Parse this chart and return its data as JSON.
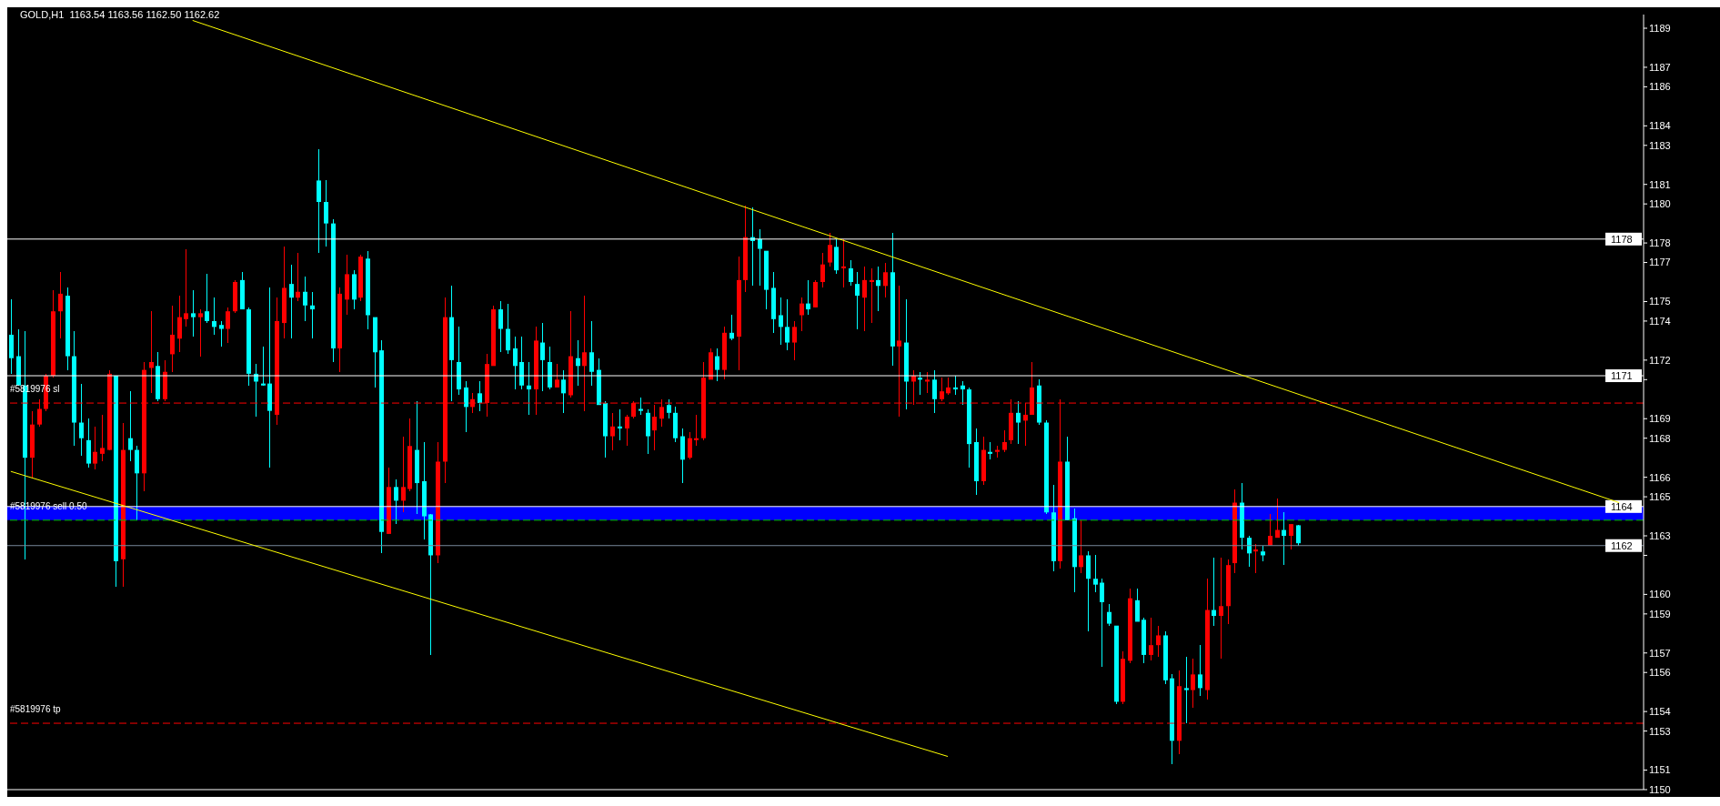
{
  "chart_data": {
    "type": "candlestick",
    "title": "GOLD,H1  1163.54 1163.56 1162.50 1162.62",
    "categories": [
      null,
      null,
      null,
      null,
      null,
      null,
      null,
      null,
      null,
      null,
      null,
      null,
      null,
      null,
      null,
      null,
      null,
      null,
      null,
      null,
      null,
      null,
      null,
      null,
      null,
      null,
      null,
      null,
      null,
      null,
      null,
      null,
      null,
      null,
      null,
      null,
      null,
      null,
      null,
      null,
      null,
      null,
      null,
      null,
      null,
      null,
      null,
      null,
      null,
      null,
      null,
      null,
      null,
      null,
      null,
      null,
      null,
      null,
      null,
      null,
      null,
      null,
      null,
      null,
      null,
      null,
      null,
      null,
      null,
      null,
      null,
      null,
      null,
      null,
      null,
      null,
      null,
      null,
      null,
      null,
      null,
      null,
      null,
      null,
      null,
      null,
      null,
      null,
      null,
      null,
      null,
      null,
      null,
      null,
      null,
      null,
      null,
      null,
      null,
      null,
      null,
      null,
      null,
      null,
      null,
      null,
      null,
      null,
      null,
      null,
      null,
      null,
      null,
      null,
      null,
      null,
      null,
      null,
      null,
      null,
      null,
      null,
      null,
      null,
      null,
      null,
      null,
      null,
      null,
      null,
      null,
      null,
      null,
      null,
      null,
      null,
      null,
      null,
      null,
      null,
      null,
      null,
      null,
      null,
      null,
      null,
      null,
      null,
      null,
      null,
      null,
      null,
      null,
      null,
      null,
      null,
      null,
      null,
      null,
      null,
      null,
      null,
      null,
      null,
      null,
      null,
      null,
      null,
      null,
      null,
      null,
      null,
      null,
      null,
      null,
      null,
      null,
      null,
      null,
      null,
      null,
      null,
      null,
      null,
      null,
      null,
      null,
      null,
      null,
      null,
      null,
      null,
      null,
      null,
      null,
      null,
      null,
      null,
      null,
      null,
      null,
      null,
      null,
      null,
      null,
      null,
      null,
      null,
      null,
      null,
      null,
      null,
      null,
      null,
      null,
      null,
      null,
      null,
      null,
      null,
      null,
      null,
      null,
      null,
      null,
      null,
      null,
      null,
      null,
      null,
      null,
      null,
      null,
      null
    ],
    "ohlc": [
      [
        1173.3,
        1175.1,
        1171.3,
        1172.1
      ],
      [
        1172.2,
        1173.6,
        1170.7,
        1170.7
      ],
      [
        1170.7,
        1173.5,
        1161.8,
        1167.0
      ],
      [
        1167.0,
        1169.4,
        1166.0,
        1168.7
      ],
      [
        1168.7,
        1170.0,
        1168.6,
        1169.5
      ],
      [
        1169.5,
        1171.3,
        1169.4,
        1171.2
      ],
      [
        1171.2,
        1175.6,
        1171.1,
        1174.5
      ],
      [
        1174.5,
        1176.5,
        1173.1,
        1175.4
      ],
      [
        1175.3,
        1175.7,
        1171.5,
        1172.2
      ],
      [
        1172.2,
        1173.5,
        1167.6,
        1168.8
      ],
      [
        1168.8,
        1170.8,
        1167.1,
        1168.0
      ],
      [
        1167.9,
        1169.0,
        1166.5,
        1166.7
      ],
      [
        1166.7,
        1168.6,
        1166.4,
        1167.3
      ],
      [
        1167.2,
        1169.2,
        1166.8,
        1167.5
      ],
      [
        1167.4,
        1171.5,
        1167.4,
        1171.3
      ],
      [
        1171.2,
        1171.2,
        1160.4,
        1161.7
      ],
      [
        1161.8,
        1168.8,
        1160.4,
        1167.4
      ],
      [
        1168.0,
        1170.4,
        1166.8,
        1167.4
      ],
      [
        1167.4,
        1167.6,
        1163.8,
        1166.2
      ],
      [
        1166.2,
        1171.9,
        1165.3,
        1171.5
      ],
      [
        1171.6,
        1174.5,
        1170.3,
        1171.9
      ],
      [
        1171.7,
        1172.4,
        1169.9,
        1170.0
      ],
      [
        1170.0,
        1172.0,
        1169.9,
        1171.4
      ],
      [
        1172.3,
        1174.8,
        1171.4,
        1173.3
      ],
      [
        1173.1,
        1175.3,
        1172.4,
        1174.2
      ],
      [
        1174.1,
        1177.7,
        1173.7,
        1174.4
      ],
      [
        1174.4,
        1175.6,
        1173.2,
        1174.2
      ],
      [
        1174.2,
        1174.6,
        1172.2,
        1174.4
      ],
      [
        1174.5,
        1176.4,
        1173.9,
        1174.0
      ],
      [
        1174.0,
        1175.2,
        1173.3,
        1173.7
      ],
      [
        1173.8,
        1174.0,
        1172.7,
        1173.6
      ],
      [
        1173.6,
        1174.7,
        1172.9,
        1174.5
      ],
      [
        1174.5,
        1176.1,
        1174.4,
        1176.0
      ],
      [
        1176.1,
        1176.5,
        1174.6,
        1174.6
      ],
      [
        1174.6,
        1174.7,
        1170.7,
        1171.3
      ],
      [
        1171.3,
        1171.8,
        1169.1,
        1170.9
      ],
      [
        1170.8,
        1172.7,
        1170.7,
        1170.7
      ],
      [
        1170.8,
        1175.7,
        1166.5,
        1169.4
      ],
      [
        1169.2,
        1175.2,
        1168.7,
        1174.0
      ],
      [
        1173.9,
        1177.8,
        1173.1,
        1175.7
      ],
      [
        1175.9,
        1176.9,
        1173.1,
        1175.2
      ],
      [
        1175.2,
        1177.5,
        1175.0,
        1175.5
      ],
      [
        1175.5,
        1176.3,
        1174.0,
        1174.8
      ],
      [
        1174.8,
        1175.5,
        1173.1,
        1174.6
      ],
      [
        1181.2,
        1182.8,
        1177.5,
        1180.1
      ],
      [
        1180.1,
        1181.2,
        1177.8,
        1179.0
      ],
      [
        1179.0,
        1179.2,
        1171.9,
        1172.6
      ],
      [
        1172.6,
        1175.7,
        1171.4,
        1175.4
      ],
      [
        1175.1,
        1177.4,
        1174.3,
        1176.4
      ],
      [
        1176.4,
        1176.6,
        1174.6,
        1175.1
      ],
      [
        1175.2,
        1177.4,
        1175.0,
        1177.3
      ],
      [
        1177.2,
        1177.6,
        1173.6,
        1174.3
      ],
      [
        1174.2,
        1174.2,
        1170.6,
        1172.4
      ],
      [
        1172.5,
        1173.0,
        1162.1,
        1163.2
      ],
      [
        1163.1,
        1166.5,
        1163.1,
        1165.5
      ],
      [
        1165.5,
        1165.9,
        1163.6,
        1164.8
      ],
      [
        1164.8,
        1168.1,
        1164.2,
        1165.5
      ],
      [
        1165.4,
        1169.0,
        1165.3,
        1167.6
      ],
      [
        1167.4,
        1169.9,
        1164.1,
        1165.7
      ],
      [
        1165.8,
        1167.8,
        1162.8,
        1164.0
      ],
      [
        1164.1,
        1164.1,
        1156.9,
        1162.0
      ],
      [
        1162.0,
        1167.8,
        1161.6,
        1166.8
      ],
      [
        1166.8,
        1175.2,
        1165.7,
        1174.2
      ],
      [
        1174.2,
        1175.8,
        1169.9,
        1172.0
      ],
      [
        1171.9,
        1173.7,
        1170.2,
        1170.5
      ],
      [
        1170.6,
        1170.9,
        1168.3,
        1169.6
      ],
      [
        1169.6,
        1170.3,
        1169.3,
        1170.0
      ],
      [
        1170.3,
        1170.9,
        1169.4,
        1169.8
      ],
      [
        1169.8,
        1172.3,
        1169.1,
        1171.8
      ],
      [
        1171.7,
        1174.8,
        1171.7,
        1174.6
      ],
      [
        1174.6,
        1175.0,
        1172.4,
        1173.6
      ],
      [
        1173.6,
        1174.9,
        1172.3,
        1172.5
      ],
      [
        1172.6,
        1173.2,
        1170.5,
        1171.7
      ],
      [
        1171.9,
        1173.2,
        1170.5,
        1170.7
      ],
      [
        1170.7,
        1171.9,
        1169.2,
        1170.5
      ],
      [
        1170.5,
        1173.7,
        1169.2,
        1173.0
      ],
      [
        1172.9,
        1173.9,
        1170.4,
        1172.0
      ],
      [
        1171.9,
        1172.7,
        1170.5,
        1170.6
      ],
      [
        1170.6,
        1171.8,
        1170.6,
        1171.0
      ],
      [
        1171.0,
        1171.5,
        1169.3,
        1170.3
      ],
      [
        1170.2,
        1174.5,
        1170.1,
        1172.2
      ],
      [
        1172.1,
        1173.0,
        1170.7,
        1171.7
      ],
      [
        1171.7,
        1175.3,
        1169.4,
        1172.4
      ],
      [
        1172.4,
        1174.0,
        1170.7,
        1171.4
      ],
      [
        1171.5,
        1172.1,
        1169.7,
        1169.7
      ],
      [
        1169.8,
        1169.9,
        1167.0,
        1168.1
      ],
      [
        1168.1,
        1169.3,
        1167.4,
        1168.6
      ],
      [
        1168.6,
        1169.5,
        1167.9,
        1168.5
      ],
      [
        1168.5,
        1169.2,
        1167.6,
        1169.1
      ],
      [
        1169.1,
        1169.9,
        1169.0,
        1169.8
      ],
      [
        1169.5,
        1170.1,
        1169.2,
        1169.4
      ],
      [
        1169.3,
        1169.5,
        1167.2,
        1168.1
      ],
      [
        1168.4,
        1169.7,
        1167.4,
        1169.1
      ],
      [
        1169.0,
        1170.0,
        1168.6,
        1169.6
      ],
      [
        1169.7,
        1170.0,
        1169.0,
        1169.3
      ],
      [
        1169.3,
        1169.6,
        1167.8,
        1168.0
      ],
      [
        1168.1,
        1168.5,
        1165.7,
        1166.9
      ],
      [
        1167.0,
        1168.3,
        1166.9,
        1168.0
      ],
      [
        1167.9,
        1169.2,
        1167.6,
        1168.0
      ],
      [
        1168.0,
        1171.9,
        1167.9,
        1171.1
      ],
      [
        1171.0,
        1172.6,
        1171.0,
        1172.4
      ],
      [
        1172.2,
        1172.6,
        1170.9,
        1171.5
      ],
      [
        1171.5,
        1173.7,
        1171.0,
        1173.4
      ],
      [
        1173.4,
        1174.3,
        1173.0,
        1173.1
      ],
      [
        1173.2,
        1177.3,
        1171.5,
        1176.1
      ],
      [
        1176.1,
        1179.9,
        1175.5,
        1178.3
      ],
      [
        1178.3,
        1179.8,
        1175.8,
        1178.1
      ],
      [
        1178.2,
        1178.7,
        1175.8,
        1177.7
      ],
      [
        1177.6,
        1177.6,
        1174.6,
        1175.6
      ],
      [
        1175.7,
        1176.5,
        1173.4,
        1174.1
      ],
      [
        1174.3,
        1175.2,
        1172.8,
        1173.7
      ],
      [
        1173.7,
        1175.1,
        1172.5,
        1172.9
      ],
      [
        1172.9,
        1174.0,
        1172.0,
        1173.7
      ],
      [
        1174.3,
        1175.2,
        1173.5,
        1174.9
      ],
      [
        1174.9,
        1176.1,
        1174.3,
        1174.6
      ],
      [
        1174.7,
        1176.1,
        1174.7,
        1176.0
      ],
      [
        1176.0,
        1177.5,
        1175.7,
        1176.9
      ],
      [
        1177.0,
        1178.5,
        1176.8,
        1177.9
      ],
      [
        1177.8,
        1178.2,
        1176.4,
        1176.6
      ],
      [
        1176.7,
        1178.2,
        1175.7,
        1176.8
      ],
      [
        1176.7,
        1177.1,
        1175.8,
        1176.0
      ],
      [
        1175.9,
        1176.5,
        1173.6,
        1175.3
      ],
      [
        1175.2,
        1176.8,
        1173.5,
        1176.1
      ],
      [
        1176.0,
        1176.7,
        1173.9,
        1176.1
      ],
      [
        1176.1,
        1176.8,
        1174.5,
        1175.8
      ],
      [
        1175.8,
        1177.0,
        1175.2,
        1176.5
      ],
      [
        1176.5,
        1178.5,
        1171.7,
        1172.7
      ],
      [
        1172.7,
        1175.8,
        1169.1,
        1173.0
      ],
      [
        1172.9,
        1175.1,
        1169.5,
        1170.9
      ],
      [
        1170.9,
        1171.5,
        1169.7,
        1171.2
      ],
      [
        1171.1,
        1171.4,
        1170.2,
        1171.0
      ],
      [
        1170.9,
        1171.4,
        1170.3,
        1171.0
      ],
      [
        1171.0,
        1171.5,
        1169.3,
        1170.0
      ],
      [
        1170.0,
        1171.1,
        1169.9,
        1170.4
      ],
      [
        1170.3,
        1171.1,
        1170.2,
        1170.6
      ],
      [
        1170.6,
        1171.2,
        1170.2,
        1170.5
      ],
      [
        1170.7,
        1170.9,
        1169.7,
        1170.5
      ],
      [
        1170.5,
        1170.6,
        1166.5,
        1167.7
      ],
      [
        1167.8,
        1168.5,
        1165.1,
        1165.8
      ],
      [
        1165.8,
        1168.1,
        1165.6,
        1167.4
      ],
      [
        1167.3,
        1167.8,
        1166.9,
        1167.2
      ],
      [
        1167.3,
        1167.6,
        1167.0,
        1167.4
      ],
      [
        1167.4,
        1168.4,
        1167.3,
        1167.8
      ],
      [
        1167.9,
        1170.0,
        1167.7,
        1169.3
      ],
      [
        1169.3,
        1169.9,
        1167.7,
        1168.8
      ],
      [
        1168.9,
        1169.8,
        1167.6,
        1169.2
      ],
      [
        1169.2,
        1171.9,
        1169.2,
        1170.6
      ],
      [
        1170.7,
        1171.0,
        1168.7,
        1168.8
      ],
      [
        1168.8,
        1168.9,
        1164.1,
        1164.2
      ],
      [
        1164.2,
        1165.6,
        1161.2,
        1161.7
      ],
      [
        1161.7,
        1170.0,
        1161.3,
        1166.8
      ],
      [
        1166.8,
        1168.1,
        1163.8,
        1163.8
      ],
      [
        1163.9,
        1164.4,
        1160.1,
        1161.4
      ],
      [
        1161.4,
        1163.8,
        1161.1,
        1162.0
      ],
      [
        1162.0,
        1162.2,
        1158.1,
        1160.8
      ],
      [
        1160.8,
        1162.0,
        1160.1,
        1160.5
      ],
      [
        1160.6,
        1160.8,
        1156.3,
        1159.6
      ],
      [
        1159.1,
        1159.5,
        1158.4,
        1158.5
      ],
      [
        1158.4,
        1158.4,
        1154.4,
        1154.5
      ],
      [
        1154.5,
        1157.1,
        1154.4,
        1156.7
      ],
      [
        1156.6,
        1160.3,
        1156.5,
        1159.8
      ],
      [
        1159.7,
        1160.3,
        1158.6,
        1158.6
      ],
      [
        1158.7,
        1158.8,
        1156.5,
        1156.9
      ],
      [
        1156.9,
        1158.8,
        1156.6,
        1157.4
      ],
      [
        1157.4,
        1158.4,
        1156.8,
        1157.9
      ],
      [
        1157.9,
        1158.1,
        1155.4,
        1155.6
      ],
      [
        1155.7,
        1155.9,
        1151.3,
        1152.5
      ],
      [
        1152.5,
        1156.1,
        1151.8,
        1155.3
      ],
      [
        1155.2,
        1156.8,
        1153.4,
        1155.1
      ],
      [
        1155.1,
        1156.7,
        1154.2,
        1155.9
      ],
      [
        1155.9,
        1157.4,
        1154.8,
        1155.2
      ],
      [
        1155.1,
        1160.8,
        1154.6,
        1159.2
      ],
      [
        1159.2,
        1161.9,
        1158.4,
        1158.9
      ],
      [
        1158.9,
        1161.9,
        1156.7,
        1159.4
      ],
      [
        1159.4,
        1161.8,
        1158.5,
        1161.5
      ],
      [
        1161.6,
        1165.4,
        1161.1,
        1164.7
      ],
      [
        1164.7,
        1165.7,
        1162.3,
        1162.9
      ],
      [
        1162.9,
        1163.0,
        1161.4,
        1162.1
      ],
      [
        1162.2,
        1162.6,
        1161.1,
        1162.3
      ],
      [
        1162.2,
        1162.5,
        1161.7,
        1162.0
      ],
      [
        1162.5,
        1164.1,
        1162.5,
        1163.0
      ],
      [
        1162.9,
        1164.9,
        1162.9,
        1163.3
      ],
      [
        1163.3,
        1164.2,
        1161.5,
        1163.0
      ],
      [
        1163.0,
        1163.6,
        1162.3,
        1163.6
      ],
      [
        1163.54,
        1163.56,
        1162.5,
        1162.62
      ],
      null,
      null,
      null,
      null,
      null,
      null,
      null,
      null,
      null,
      null,
      null,
      null,
      null,
      null,
      null,
      null,
      null,
      null,
      null,
      null,
      null,
      null,
      null,
      null,
      null,
      null,
      null,
      null,
      null,
      null,
      null,
      null,
      null,
      null,
      null,
      null,
      null,
      null,
      null,
      null,
      null,
      null,
      null,
      null,
      null,
      null,
      null,
      null,
      null
    ],
    "colors": [
      "#00ffff",
      "#00ffff",
      "#00ffff",
      "#ff0000",
      "#ff0000",
      "#ff0000",
      "#ff0000",
      "#ff0000",
      "#00ffff",
      "#00ffff",
      "#00ffff",
      "#00ffff",
      "#ff0000",
      "#ff0000",
      "#ff0000",
      "#00ffff",
      "#ff0000",
      "#00ffff",
      "#00ffff",
      "#ff0000",
      "#ff0000",
      "#00ffff",
      "#ff0000",
      "#ff0000",
      "#ff0000",
      "#ff0000",
      "#00ffff",
      "#ff0000",
      "#00ffff",
      "#00ffff",
      "#00ffff",
      "#ff0000",
      "#ff0000",
      "#00ffff",
      "#00ffff",
      "#00ffff",
      "#00ffff",
      "#00ffff",
      "#ff0000",
      "#ff0000",
      "#00ffff",
      "#ff0000",
      "#00ffff",
      "#00ffff",
      "#00ffff",
      "#00ffff",
      "#00ffff",
      "#ff0000",
      "#ff0000",
      "#00ffff",
      "#ff0000",
      "#00ffff",
      "#00ffff",
      "#00ffff",
      "#ff0000",
      "#00ffff",
      "#ff0000",
      "#ff0000",
      "#00ffff",
      "#00ffff",
      "#00ffff",
      "#ff0000",
      "#ff0000",
      "#00ffff",
      "#00ffff",
      "#00ffff",
      "#ff0000",
      "#00ffff",
      "#ff0000",
      "#ff0000",
      "#00ffff",
      "#00ffff",
      "#00ffff",
      "#00ffff",
      "#00ffff",
      "#ff0000",
      "#00ffff",
      "#00ffff",
      "#ff0000",
      "#00ffff",
      "#ff0000",
      "#00ffff",
      "#ff0000",
      "#00ffff",
      "#00ffff",
      "#00ffff",
      "#ff0000",
      "#00ffff",
      "#ff0000",
      "#ff0000",
      "#00ffff",
      "#00ffff",
      "#ff0000",
      "#ff0000",
      "#00ffff",
      "#00ffff",
      "#00ffff",
      "#ff0000",
      "#ff0000",
      "#ff0000",
      "#ff0000",
      "#00ffff",
      "#ff0000",
      "#00ffff",
      "#ff0000",
      "#ff0000",
      "#00ffff",
      "#00ffff",
      "#00ffff",
      "#00ffff",
      "#00ffff",
      "#00ffff",
      "#ff0000",
      "#ff0000",
      "#00ffff",
      "#ff0000",
      "#ff0000",
      "#ff0000",
      "#00ffff",
      "#ff0000",
      "#00ffff",
      "#00ffff",
      "#ff0000",
      "#ff0000",
      "#00ffff",
      "#ff0000",
      "#00ffff",
      "#ff0000",
      "#00ffff",
      "#ff0000",
      "#00ffff",
      "#ff0000",
      "#00ffff",
      "#ff0000",
      "#ff0000",
      "#00ffff",
      "#00ffff",
      "#00ffff",
      "#00ffff",
      "#ff0000",
      "#00ffff",
      "#ff0000",
      "#ff0000",
      "#ff0000",
      "#00ffff",
      "#ff0000",
      "#ff0000",
      "#00ffff",
      "#00ffff",
      "#00ffff",
      "#ff0000",
      "#00ffff",
      "#00ffff",
      "#ff0000",
      "#00ffff",
      "#00ffff",
      "#00ffff",
      "#00ffff",
      "#00ffff",
      "#ff0000",
      "#ff0000",
      "#00ffff",
      "#00ffff",
      "#ff0000",
      "#ff0000",
      "#00ffff",
      "#00ffff",
      "#ff0000",
      "#00ffff",
      "#ff0000",
      "#00ffff",
      "#ff0000",
      "#00ffff",
      "#ff0000",
      "#ff0000",
      "#ff0000",
      "#00ffff",
      "#00ffff",
      "#ff0000",
      "#00ffff",
      "#ff0000",
      "#ff0000",
      "#00ffff",
      "#ff0000",
      "#00ffff",
      null,
      null,
      null,
      null,
      null,
      null,
      null,
      null,
      null,
      null,
      null,
      null,
      null,
      null,
      null,
      null,
      null,
      null,
      null,
      null,
      null,
      null,
      null,
      null,
      null,
      null,
      null,
      null,
      null,
      null,
      null,
      null,
      null,
      null,
      null,
      null,
      null,
      null,
      null,
      null,
      null,
      null,
      null,
      null,
      null,
      null,
      null,
      null,
      null
    ],
    "series": [
      {
        "type": "line",
        "color": "#ffff00",
        "values": [
          null,
          null,
          null,
          null,
          null,
          null,
          null,
          null,
          null,
          null,
          null,
          null,
          null,
          null,
          null,
          null,
          null,
          null,
          null,
          null,
          null,
          null,
          null,
          null,
          null,
          null,
          1189.4,
          null,
          null,
          null,
          null,
          null,
          null,
          null,
          null,
          null,
          null,
          null,
          null,
          null,
          null,
          null,
          null,
          null,
          null,
          null,
          null,
          null,
          null,
          null,
          null,
          null,
          null,
          null,
          null,
          null,
          null,
          null,
          null,
          null,
          null,
          null,
          null,
          null,
          null,
          null,
          null,
          null,
          null,
          null,
          null,
          null,
          null,
          null,
          null,
          null,
          null,
          null,
          null,
          null,
          null,
          null,
          null,
          null,
          null,
          null,
          null,
          null,
          null,
          null,
          null,
          null,
          null,
          null,
          null,
          null,
          null,
          null,
          null,
          null,
          null,
          null,
          null,
          null,
          null,
          null,
          null,
          null,
          null,
          null,
          null,
          null,
          null,
          null,
          null,
          null,
          null,
          null,
          null,
          null,
          null,
          null,
          null,
          null,
          null,
          null,
          null,
          null,
          null,
          null,
          null,
          null,
          null,
          null,
          null,
          null,
          null,
          null,
          null,
          null,
          null,
          null,
          null,
          null,
          null,
          null,
          null,
          null,
          null,
          null,
          null,
          null,
          null,
          null,
          null,
          null,
          null,
          null,
          null,
          null,
          null,
          null,
          null,
          null,
          null,
          null,
          null,
          null,
          null,
          null,
          null,
          null,
          null,
          null,
          null,
          null,
          null,
          null,
          null,
          null,
          null,
          null,
          null,
          null,
          null,
          null,
          null,
          null,
          null,
          null,
          null,
          null,
          null,
          null,
          null,
          null,
          null,
          null,
          null,
          null,
          null,
          null,
          null,
          null,
          null,
          null,
          null,
          null,
          null,
          null,
          null,
          null,
          null,
          null,
          null,
          null,
          null,
          null,
          null,
          null,
          null,
          null,
          null,
          null,
          null,
          null,
          null,
          null,
          null,
          null,
          1164.7,
          null,
          null,
          null
        ]
      },
      {
        "type": "line",
        "color": "#ffff00",
        "values": [
          1166.3,
          null,
          null,
          null,
          null,
          null,
          null,
          null,
          null,
          null,
          null,
          null,
          null,
          null,
          null,
          null,
          null,
          null,
          null,
          null,
          null,
          null,
          null,
          null,
          null,
          null,
          null,
          null,
          null,
          null,
          null,
          null,
          null,
          null,
          null,
          null,
          null,
          null,
          null,
          null,
          null,
          null,
          null,
          null,
          null,
          null,
          null,
          null,
          null,
          null,
          null,
          null,
          null,
          null,
          null,
          null,
          null,
          null,
          null,
          null,
          null,
          null,
          null,
          null,
          null,
          null,
          null,
          null,
          null,
          null,
          null,
          null,
          null,
          null,
          null,
          null,
          null,
          null,
          null,
          null,
          null,
          null,
          null,
          null,
          null,
          null,
          null,
          null,
          null,
          null,
          null,
          null,
          null,
          null,
          null,
          null,
          null,
          null,
          null,
          null,
          null,
          null,
          null,
          null,
          null,
          null,
          null,
          null,
          null,
          null,
          null,
          null,
          null,
          null,
          null,
          null,
          null,
          null,
          null,
          null,
          null,
          null,
          null,
          null,
          null,
          null,
          null,
          null,
          null,
          null,
          null,
          null,
          null,
          null,
          1151.7,
          null,
          null,
          null,
          null,
          null,
          null,
          null,
          null,
          null,
          null,
          null,
          null,
          null,
          null,
          null,
          null,
          null,
          null,
          null,
          null,
          null,
          null,
          null,
          null,
          null,
          null,
          null,
          null,
          null,
          null,
          null,
          null,
          null,
          null,
          null,
          null,
          null,
          null,
          null,
          null,
          null,
          null,
          null,
          null,
          null,
          null,
          null,
          null,
          null,
          null,
          null,
          null,
          null,
          null,
          null,
          null,
          null,
          null,
          null,
          null,
          null,
          null,
          null,
          null,
          null,
          null,
          null,
          null,
          null,
          null,
          null,
          null,
          null,
          null,
          null,
          null,
          null,
          null,
          null,
          null,
          null,
          null,
          null,
          null,
          null,
          null,
          null,
          null,
          null,
          null,
          null,
          null,
          null,
          null,
          null,
          null,
          null,
          null,
          null
        ]
      }
    ],
    "ylim": [
      1150.0,
      1189.7
    ],
    "yticks": [
      1150,
      1151,
      1153,
      1154,
      1156,
      1157,
      1159,
      1160,
      {
        "value": 1162,
        "label": null
      },
      1163,
      1165,
      1166,
      1168,
      1169,
      {
        "value": 1171,
        "label": null
      },
      1172,
      1174,
      1175,
      1177,
      1178,
      1180,
      1181,
      1183,
      1184,
      1186,
      1187,
      1189
    ],
    "ref_lines": [
      {
        "axis": "y",
        "value": 1178.2,
        "label": "1178",
        "color": "#ffffff",
        "line_style": "solid"
      },
      {
        "axis": "y",
        "value": 1171.2,
        "label": "1171",
        "color": "#ffffff",
        "line_style": "solid"
      },
      {
        "axis": "y",
        "value": 1164.5,
        "label": "1164",
        "color": "#ffffff",
        "line_style": "solid"
      },
      {
        "axis": "y",
        "value": 1162.5,
        "label": "1162",
        "color": "#778899",
        "line_style": "solid"
      },
      {
        "axis": "y",
        "value": 1169.8,
        "label": "#5819976 sl",
        "color": "#ff0000",
        "line_style": "dashed"
      },
      {
        "axis": "y",
        "value": 1163.8,
        "label": "#5819976 sell 0.50",
        "color": "#00c000",
        "line_style": "dashed"
      },
      {
        "axis": "y",
        "value": 1153.4,
        "label": "#5819976 tp",
        "color": "#ff0000",
        "line_style": "dashed"
      }
    ],
    "bands": [
      {
        "axis": "y",
        "from": 1163.8,
        "to": 1164.5,
        "color": "#0000ff"
      }
    ],
    "tick_labels": "y"
  }
}
